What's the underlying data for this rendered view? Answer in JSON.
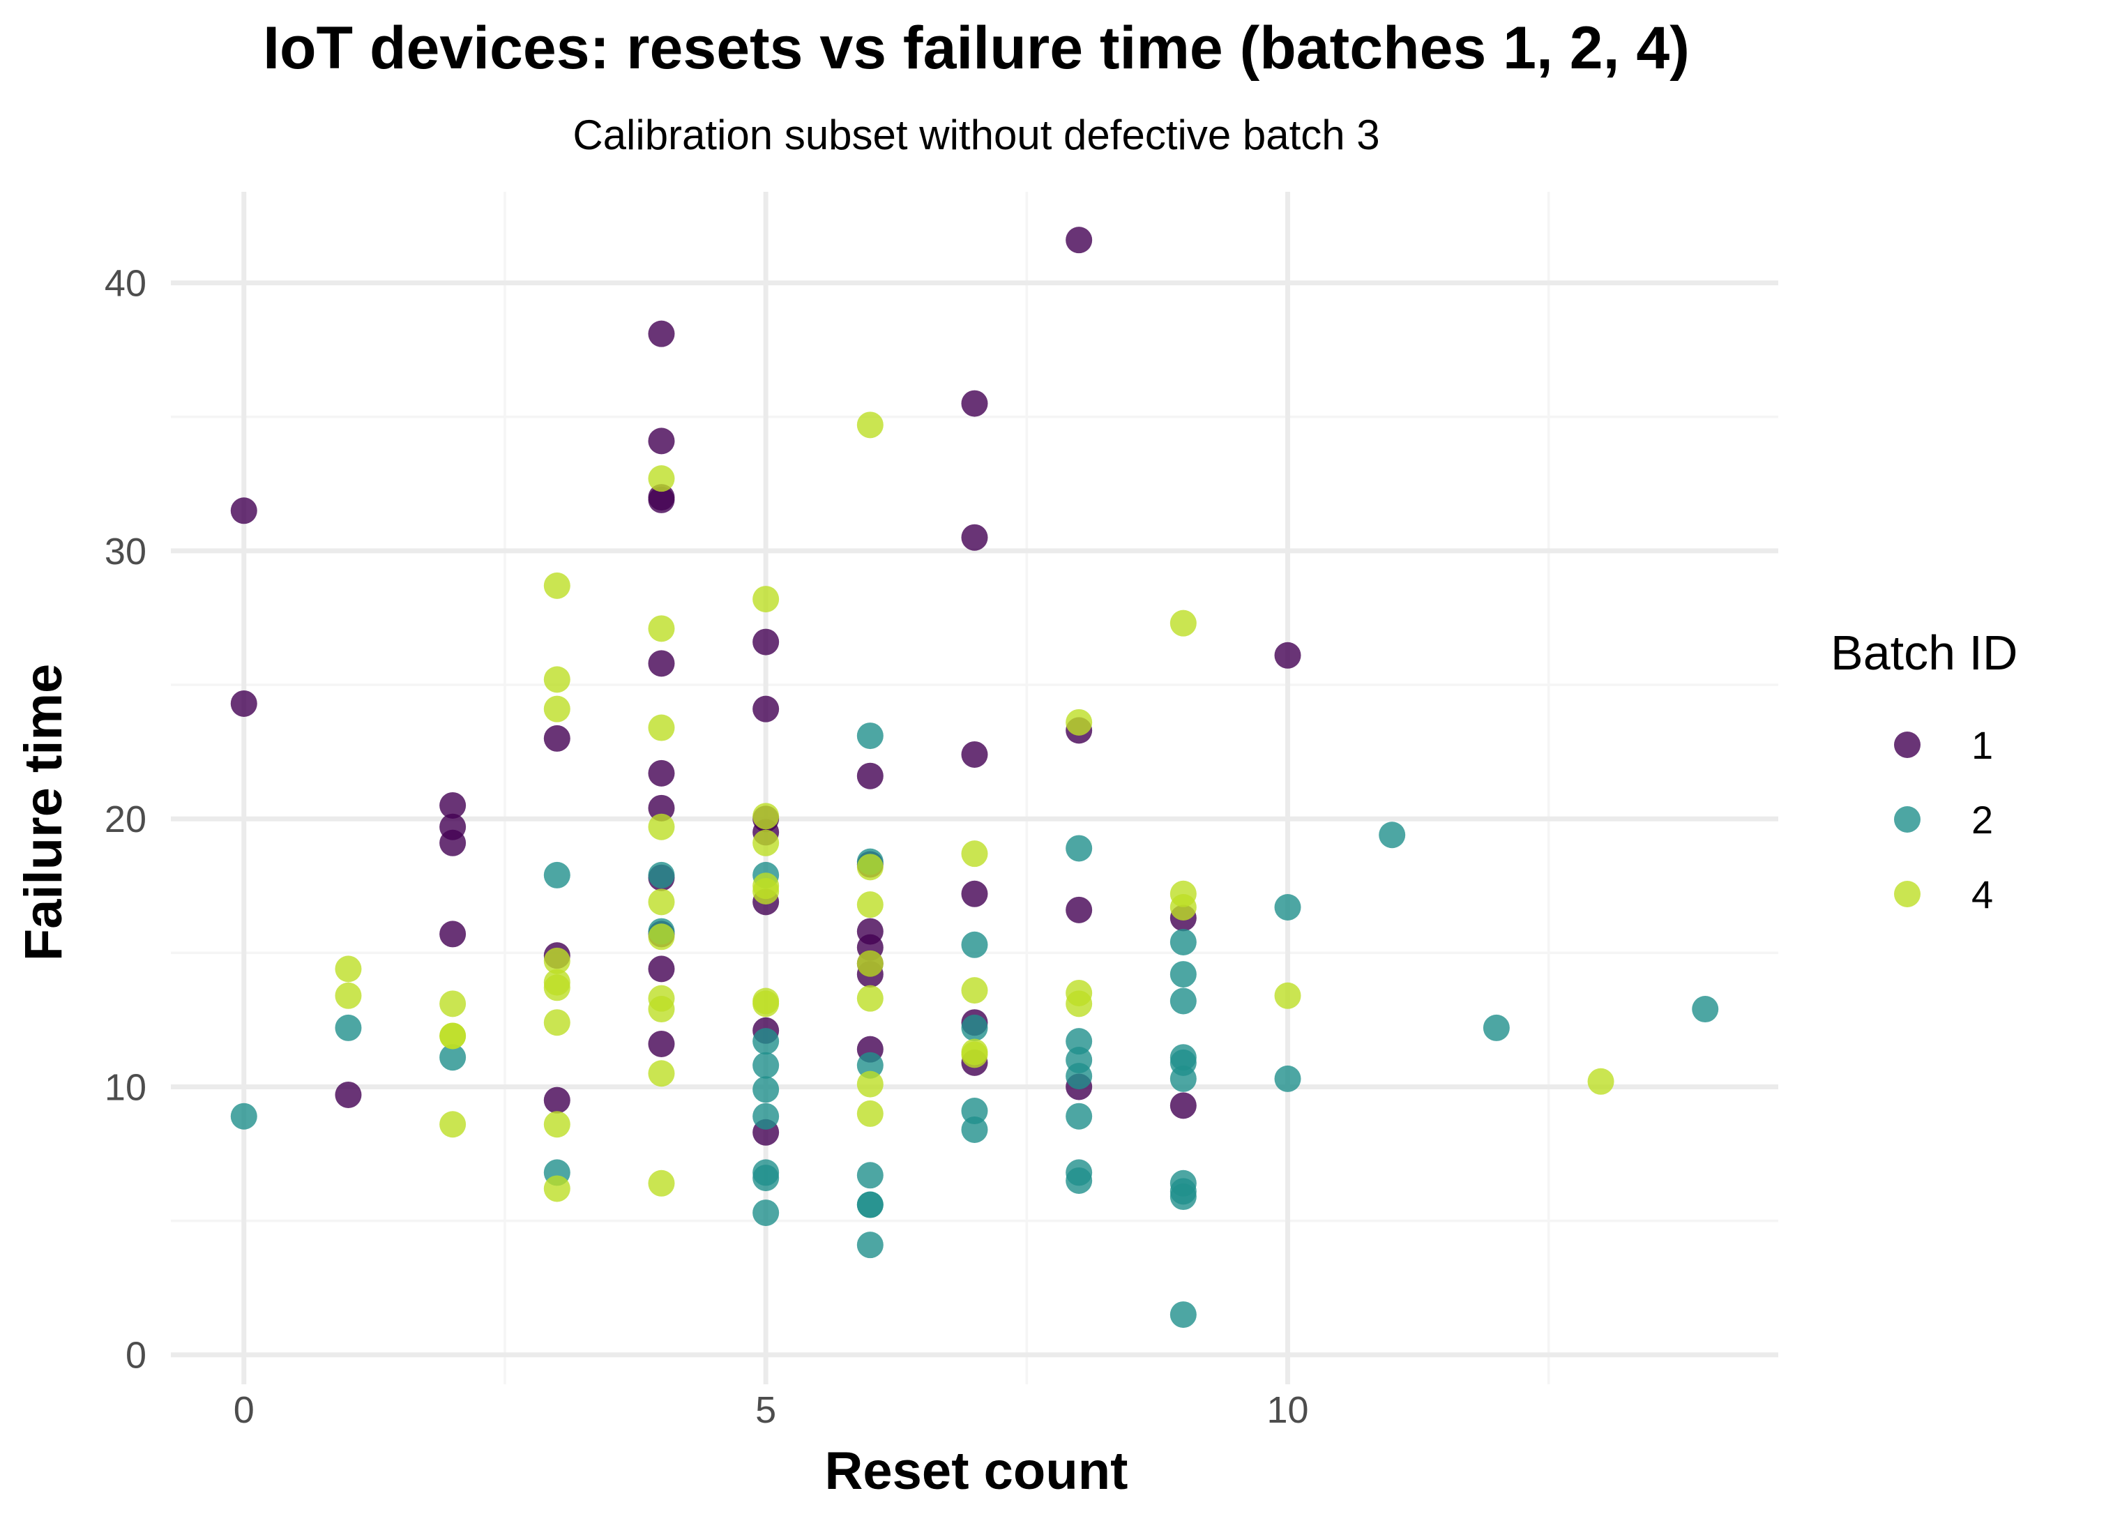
{
  "chart_data": {
    "type": "scatter",
    "title": "IoT devices: resets vs failure time (batches 1, 2, 4)",
    "subtitle": "Calibration subset without defective batch 3",
    "xlabel": "Reset count",
    "ylabel": "Failure time",
    "xlim": [
      -0.7,
      14.7
    ],
    "ylim": [
      -1.1,
      43.4
    ],
    "xticks": [
      0,
      5,
      10
    ],
    "yticks": [
      0,
      10,
      20,
      30,
      40
    ],
    "grid": true,
    "legend": {
      "title": "Batch ID",
      "position": "right"
    },
    "series": [
      {
        "name": "1",
        "color": "#440154",
        "points": [
          [
            0,
            31.5
          ],
          [
            0,
            24.3
          ],
          [
            1,
            9.7
          ],
          [
            2,
            20.5
          ],
          [
            2,
            19.7
          ],
          [
            2,
            19.1
          ],
          [
            2,
            15.7
          ],
          [
            3,
            23.0
          ],
          [
            3,
            14.9
          ],
          [
            3,
            9.5
          ],
          [
            4,
            38.1
          ],
          [
            4,
            34.1
          ],
          [
            4,
            32.0
          ],
          [
            4,
            31.9
          ],
          [
            4,
            25.8
          ],
          [
            4,
            21.7
          ],
          [
            4,
            20.4
          ],
          [
            4,
            17.8
          ],
          [
            4,
            15.7
          ],
          [
            4,
            14.4
          ],
          [
            4,
            11.6
          ],
          [
            5,
            26.6
          ],
          [
            5,
            24.1
          ],
          [
            5,
            20.0
          ],
          [
            5,
            19.5
          ],
          [
            5,
            16.9
          ],
          [
            5,
            12.1
          ],
          [
            5,
            8.3
          ],
          [
            6,
            21.6
          ],
          [
            6,
            18.3
          ],
          [
            6,
            15.8
          ],
          [
            6,
            15.2
          ],
          [
            6,
            14.6
          ],
          [
            6,
            14.2
          ],
          [
            6,
            11.4
          ],
          [
            7,
            35.5
          ],
          [
            7,
            30.5
          ],
          [
            7,
            22.4
          ],
          [
            7,
            17.2
          ],
          [
            7,
            12.4
          ],
          [
            7,
            10.9
          ],
          [
            8,
            41.6
          ],
          [
            8,
            23.3
          ],
          [
            8,
            16.6
          ],
          [
            8,
            10.0
          ],
          [
            9,
            16.3
          ],
          [
            9,
            9.3
          ],
          [
            10,
            26.1
          ]
        ]
      },
      {
        "name": "2",
        "color": "#21908C",
        "points": [
          [
            0,
            8.9
          ],
          [
            1,
            12.2
          ],
          [
            2,
            11.1
          ],
          [
            3,
            17.9
          ],
          [
            3,
            6.8
          ],
          [
            4,
            17.9
          ],
          [
            4,
            15.8
          ],
          [
            5,
            17.9
          ],
          [
            5,
            11.7
          ],
          [
            5,
            10.8
          ],
          [
            5,
            9.9
          ],
          [
            5,
            8.9
          ],
          [
            5,
            6.8
          ],
          [
            5,
            6.6
          ],
          [
            5,
            5.3
          ],
          [
            6,
            23.1
          ],
          [
            6,
            18.4
          ],
          [
            6,
            10.8
          ],
          [
            6,
            6.7
          ],
          [
            6,
            5.6
          ],
          [
            6,
            5.6
          ],
          [
            6,
            4.1
          ],
          [
            7,
            15.3
          ],
          [
            7,
            12.2
          ],
          [
            7,
            9.1
          ],
          [
            7,
            8.4
          ],
          [
            8,
            18.9
          ],
          [
            8,
            11.7
          ],
          [
            8,
            11.0
          ],
          [
            8,
            10.4
          ],
          [
            8,
            8.9
          ],
          [
            8,
            6.8
          ],
          [
            8,
            6.5
          ],
          [
            9,
            15.4
          ],
          [
            9,
            14.2
          ],
          [
            9,
            13.2
          ],
          [
            9,
            11.1
          ],
          [
            9,
            10.9
          ],
          [
            9,
            10.3
          ],
          [
            9,
            6.4
          ],
          [
            9,
            6.1
          ],
          [
            9,
            5.9
          ],
          [
            9,
            1.5
          ],
          [
            10,
            16.7
          ],
          [
            10,
            10.3
          ],
          [
            11,
            19.4
          ],
          [
            12,
            12.2
          ],
          [
            14,
            12.9
          ]
        ]
      },
      {
        "name": "4",
        "color": "#BDDF26",
        "points": [
          [
            1,
            14.4
          ],
          [
            1,
            13.4
          ],
          [
            2,
            13.1
          ],
          [
            2,
            11.9
          ],
          [
            2,
            11.9
          ],
          [
            2,
            8.6
          ],
          [
            3,
            28.7
          ],
          [
            3,
            25.2
          ],
          [
            3,
            24.1
          ],
          [
            3,
            14.7
          ],
          [
            3,
            13.9
          ],
          [
            3,
            13.7
          ],
          [
            3,
            12.4
          ],
          [
            3,
            8.6
          ],
          [
            3,
            6.2
          ],
          [
            4,
            32.7
          ],
          [
            4,
            27.1
          ],
          [
            4,
            23.4
          ],
          [
            4,
            19.7
          ],
          [
            4,
            16.9
          ],
          [
            4,
            15.6
          ],
          [
            4,
            13.3
          ],
          [
            4,
            12.9
          ],
          [
            4,
            10.5
          ],
          [
            4,
            6.4
          ],
          [
            5,
            28.2
          ],
          [
            5,
            20.1
          ],
          [
            5,
            19.1
          ],
          [
            5,
            17.5
          ],
          [
            5,
            17.3
          ],
          [
            5,
            13.2
          ],
          [
            5,
            13.1
          ],
          [
            6,
            34.7
          ],
          [
            6,
            18.2
          ],
          [
            6,
            16.8
          ],
          [
            6,
            14.6
          ],
          [
            6,
            13.3
          ],
          [
            6,
            10.1
          ],
          [
            6,
            9.0
          ],
          [
            7,
            18.7
          ],
          [
            7,
            13.6
          ],
          [
            7,
            11.3
          ],
          [
            7,
            11.2
          ],
          [
            8,
            23.6
          ],
          [
            8,
            13.5
          ],
          [
            8,
            13.1
          ],
          [
            9,
            27.3
          ],
          [
            9,
            17.2
          ],
          [
            9,
            16.7
          ],
          [
            10,
            13.4
          ],
          [
            13,
            10.2
          ]
        ]
      }
    ]
  }
}
